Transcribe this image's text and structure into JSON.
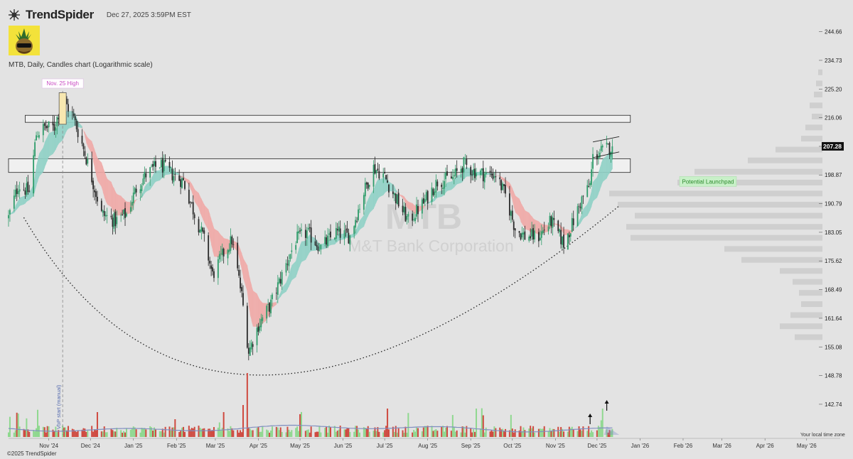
{
  "header": {
    "brand": "TrendSpider",
    "datetime": "Dec 27, 2025 3:59PM EST"
  },
  "subtitle": "MTB, Daily, Candles chart (Logarithmic scale)",
  "watermark": {
    "ticker": "MTB",
    "company": "M&T Bank Corporation"
  },
  "footer": {
    "copyright": "©2025 TrendSpider",
    "timezone": "Your local time zone"
  },
  "colors": {
    "up": "#2e9c6a",
    "down": "#cc3b33",
    "ema_up": "#8fd0c5",
    "ema_down": "#f0a8a6",
    "vol_up": "#8fd88f",
    "vol_down": "#cf4a40",
    "vp_line": "#7f8ec0",
    "callout_green": "#5fcf5f"
  },
  "icons": [
    "trendspider-logo-icon",
    "avatar-image",
    "arrow-up-icon"
  ],
  "chart_data": {
    "type": "candlestick",
    "title": "MTB, Daily, Candles chart (Logarithmic scale)",
    "yscale": "log",
    "ylim": [
      136,
      253
    ],
    "y_ticks": [
      "244.66",
      "234.73",
      "225.20",
      "216.06",
      "207.28",
      "198.87",
      "190.79",
      "183.05",
      "175.62",
      "168.49",
      "161.64",
      "155.08",
      "148.78",
      "142.74"
    ],
    "x_ticks": [
      "Nov '24",
      "Dec '24",
      "Jan '25",
      "Feb '25",
      "Mar '25",
      "Apr '25",
      "May '25",
      "Jun '25",
      "Jul '25",
      "Aug '25",
      "Sep '25",
      "Oct '25",
      "Nov '25",
      "Dec '25",
      "Jan '26",
      "Feb '26",
      "Mar '26",
      "Apr '26",
      "May '26"
    ],
    "x_range": [
      "2024-10-17",
      "2026-05-31"
    ],
    "last_price": "207.28",
    "price_path": [
      [
        "2024-10-17",
        187
      ],
      [
        "2024-10-24",
        196
      ],
      [
        "2024-11-01",
        194
      ],
      [
        "2024-11-06",
        211
      ],
      [
        "2024-11-12",
        213
      ],
      [
        "2024-11-19",
        213
      ],
      [
        "2024-11-25",
        222
      ],
      [
        "2024-12-02",
        217
      ],
      [
        "2024-12-09",
        208
      ],
      [
        "2024-12-16",
        198
      ],
      [
        "2024-12-23",
        188
      ],
      [
        "2025-01-02",
        186
      ],
      [
        "2025-01-10",
        188
      ],
      [
        "2025-01-17",
        195
      ],
      [
        "2025-01-24",
        199
      ],
      [
        "2025-02-03",
        202
      ],
      [
        "2025-02-12",
        199
      ],
      [
        "2025-02-20",
        197
      ],
      [
        "2025-02-28",
        188
      ],
      [
        "2025-03-07",
        181
      ],
      [
        "2025-03-13",
        172
      ],
      [
        "2025-03-20",
        177
      ],
      [
        "2025-03-27",
        181
      ],
      [
        "2025-04-03",
        167
      ],
      [
        "2025-04-08",
        154
      ],
      [
        "2025-04-15",
        160
      ],
      [
        "2025-04-24",
        165
      ],
      [
        "2025-05-02",
        172
      ],
      [
        "2025-05-12",
        181
      ],
      [
        "2025-05-20",
        183
      ],
      [
        "2025-05-30",
        179
      ],
      [
        "2025-06-10",
        183
      ],
      [
        "2025-06-20",
        182
      ],
      [
        "2025-06-30",
        194
      ],
      [
        "2025-07-07",
        201
      ],
      [
        "2025-07-14",
        199
      ],
      [
        "2025-07-22",
        193
      ],
      [
        "2025-08-01",
        186
      ],
      [
        "2025-08-12",
        191
      ],
      [
        "2025-08-22",
        197
      ],
      [
        "2025-09-02",
        198
      ],
      [
        "2025-09-10",
        202
      ],
      [
        "2025-09-17",
        200
      ],
      [
        "2025-09-26",
        199
      ],
      [
        "2025-10-03",
        199
      ],
      [
        "2025-10-10",
        193
      ],
      [
        "2025-10-17",
        184
      ],
      [
        "2025-10-24",
        182
      ],
      [
        "2025-11-03",
        182
      ],
      [
        "2025-11-12",
        186
      ],
      [
        "2025-11-21",
        180
      ],
      [
        "2025-11-28",
        186
      ],
      [
        "2025-12-04",
        192
      ],
      [
        "2025-12-10",
        196
      ],
      [
        "2025-12-12",
        204
      ],
      [
        "2025-12-19",
        206
      ],
      [
        "2025-12-26",
        207.28
      ]
    ],
    "zones": [
      {
        "from": "2024-10-29",
        "to": "2026-01-08",
        "low": 214.6,
        "high": 216.8
      },
      {
        "from": "2024-10-17",
        "to": "2026-01-08",
        "low": 199.6,
        "high": 203.6
      }
    ],
    "volume_profile": {
      "levels": [
        230.6,
        226.9,
        223.3,
        219.8,
        216.3,
        212.9,
        209.5,
        206.2,
        203.0,
        199.7,
        196.6,
        193.5,
        190.4,
        187.4,
        184.4,
        181.5,
        178.6,
        175.8,
        173.0,
        170.3,
        167.6,
        164.9,
        162.3,
        159.7,
        157.2
      ],
      "volumes": [
        2,
        3,
        4,
        6,
        5,
        8,
        10,
        22,
        35,
        60,
        68,
        100,
        96,
        88,
        92,
        90,
        46,
        38,
        20,
        14,
        11,
        10,
        15,
        20,
        13
      ]
    },
    "rounded_bottom": [
      [
        "2024-10-28",
        187.0
      ],
      [
        "2025-04-21",
        148.9
      ],
      [
        "2025-12-31",
        190.2
      ]
    ],
    "vp_start_date": "2024-11-25",
    "annotations": {
      "high_label": "Nov. 25 High",
      "vp_label": "VbP start (manual)",
      "launchpad_label": "Potential Launchpad"
    }
  }
}
